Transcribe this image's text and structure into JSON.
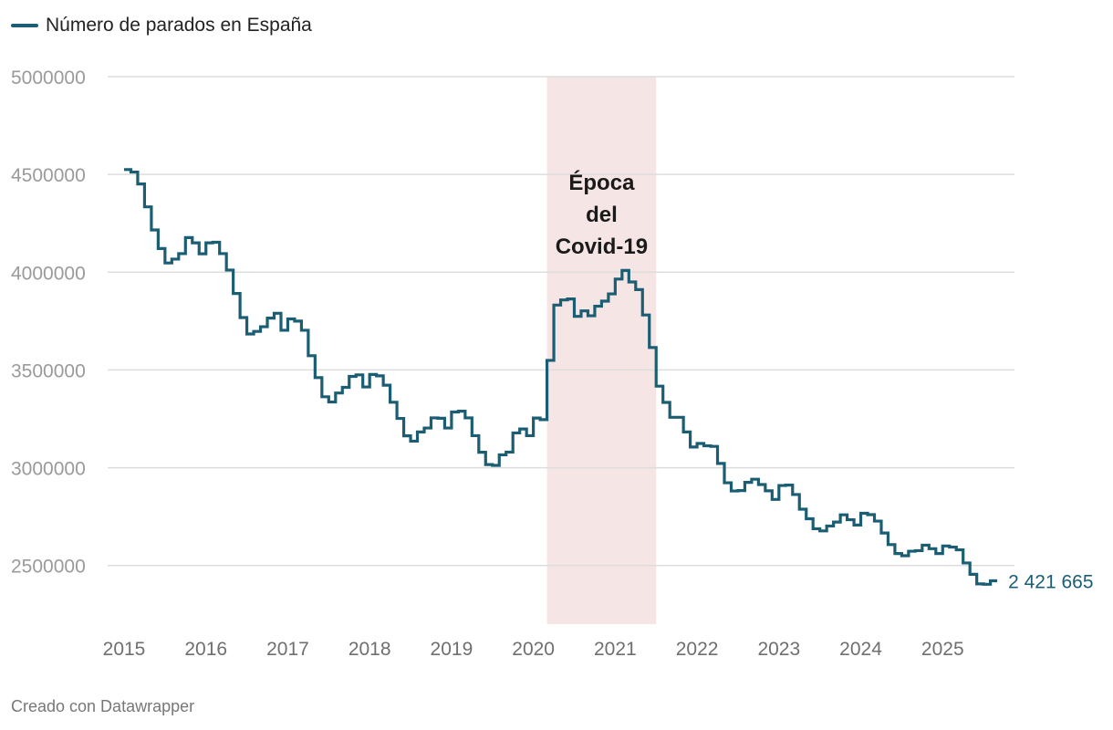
{
  "legend": {
    "label": "Número de parados en España"
  },
  "footer": {
    "text": "Creado con Datawrapper"
  },
  "colors": {
    "line": "#1b5e74",
    "band": "#f6e5e5",
    "grid": "#dddddd"
  },
  "chart_data": {
    "type": "line",
    "series": [
      {
        "name": "Número de parados en España",
        "x": [
          "2015-01",
          "2015-02",
          "2015-03",
          "2015-04",
          "2015-05",
          "2015-06",
          "2015-07",
          "2015-08",
          "2015-09",
          "2015-10",
          "2015-11",
          "2015-12",
          "2016-01",
          "2016-02",
          "2016-03",
          "2016-04",
          "2016-05",
          "2016-06",
          "2016-07",
          "2016-08",
          "2016-09",
          "2016-10",
          "2016-11",
          "2016-12",
          "2017-01",
          "2017-02",
          "2017-03",
          "2017-04",
          "2017-05",
          "2017-06",
          "2017-07",
          "2017-08",
          "2017-09",
          "2017-10",
          "2017-11",
          "2017-12",
          "2018-01",
          "2018-02",
          "2018-03",
          "2018-04",
          "2018-05",
          "2018-06",
          "2018-07",
          "2018-08",
          "2018-09",
          "2018-10",
          "2018-11",
          "2018-12",
          "2019-01",
          "2019-02",
          "2019-03",
          "2019-04",
          "2019-05",
          "2019-06",
          "2019-07",
          "2019-08",
          "2019-09",
          "2019-10",
          "2019-11",
          "2019-12",
          "2020-01",
          "2020-02",
          "2020-03",
          "2020-04",
          "2020-05",
          "2020-06",
          "2020-07",
          "2020-08",
          "2020-09",
          "2020-10",
          "2020-11",
          "2020-12",
          "2021-01",
          "2021-02",
          "2021-03",
          "2021-04",
          "2021-05",
          "2021-06",
          "2021-07",
          "2021-08",
          "2021-09",
          "2021-10",
          "2021-11",
          "2021-12",
          "2022-01",
          "2022-02",
          "2022-03",
          "2022-04",
          "2022-05",
          "2022-06",
          "2022-07",
          "2022-08",
          "2022-09",
          "2022-10",
          "2022-11",
          "2022-12",
          "2023-01",
          "2023-02",
          "2023-03",
          "2023-04",
          "2023-05",
          "2023-06",
          "2023-07",
          "2023-08",
          "2023-09",
          "2023-10",
          "2023-11",
          "2023-12",
          "2024-01",
          "2024-02",
          "2024-03",
          "2024-04",
          "2024-05",
          "2024-06",
          "2024-07",
          "2024-08",
          "2024-09",
          "2024-10",
          "2024-11",
          "2024-12",
          "2025-01",
          "2025-02",
          "2025-03",
          "2025-04",
          "2025-05",
          "2025-06",
          "2025-07",
          "2025-08"
        ],
        "values": [
          4525000,
          4512000,
          4451000,
          4334000,
          4216000,
          4121000,
          4047000,
          4067000,
          4095000,
          4177000,
          4150000,
          4094000,
          4150000,
          4153000,
          4095000,
          4011000,
          3891000,
          3768000,
          3684000,
          3697000,
          3721000,
          3765000,
          3790000,
          3703000,
          3761000,
          3750000,
          3703000,
          3573000,
          3461000,
          3363000,
          3336000,
          3382000,
          3411000,
          3467000,
          3475000,
          3413000,
          3477000,
          3470000,
          3422000,
          3335000,
          3252000,
          3163000,
          3136000,
          3183000,
          3203000,
          3255000,
          3253000,
          3203000,
          3285000,
          3289000,
          3255000,
          3164000,
          3079000,
          3016000,
          3012000,
          3066000,
          3080000,
          3178000,
          3198000,
          3164000,
          3254000,
          3246000,
          3549000,
          3832000,
          3858000,
          3863000,
          3774000,
          3802000,
          3777000,
          3826000,
          3852000,
          3889000,
          3965000,
          4009000,
          3950000,
          3911000,
          3781000,
          3615000,
          3417000,
          3334000,
          3258000,
          3258000,
          3183000,
          3106000,
          3124000,
          3112000,
          3109000,
          3022000,
          2923000,
          2881000,
          2883000,
          2925000,
          2941000,
          2914000,
          2882000,
          2838000,
          2909000,
          2911000,
          2863000,
          2788000,
          2739000,
          2688000,
          2677000,
          2702000,
          2722000,
          2759000,
          2734000,
          2707000,
          2767000,
          2760000,
          2727000,
          2666000,
          2607000,
          2561000,
          2550000,
          2573000,
          2576000,
          2604000,
          2586000,
          2561000,
          2600000,
          2594000,
          2580000,
          2513000,
          2455000,
          2406000,
          2404000,
          2421665
        ]
      }
    ],
    "yticks": [
      "5000000",
      "4500000",
      "4000000",
      "3500000",
      "3000000",
      "2500000"
    ],
    "xticks": [
      "2015",
      "2016",
      "2017",
      "2018",
      "2019",
      "2020",
      "2021",
      "2022",
      "2023",
      "2024",
      "2025"
    ],
    "ylim": [
      2200000,
      5000000
    ],
    "xlim": [
      "2015-01",
      "2025-12"
    ],
    "highlight": {
      "from": "2020-03",
      "to": "2021-07",
      "label": [
        "Época",
        "del",
        "Covid-19"
      ]
    },
    "end_label": "2 421 665",
    "grid": true,
    "legend_position": "top-left"
  }
}
